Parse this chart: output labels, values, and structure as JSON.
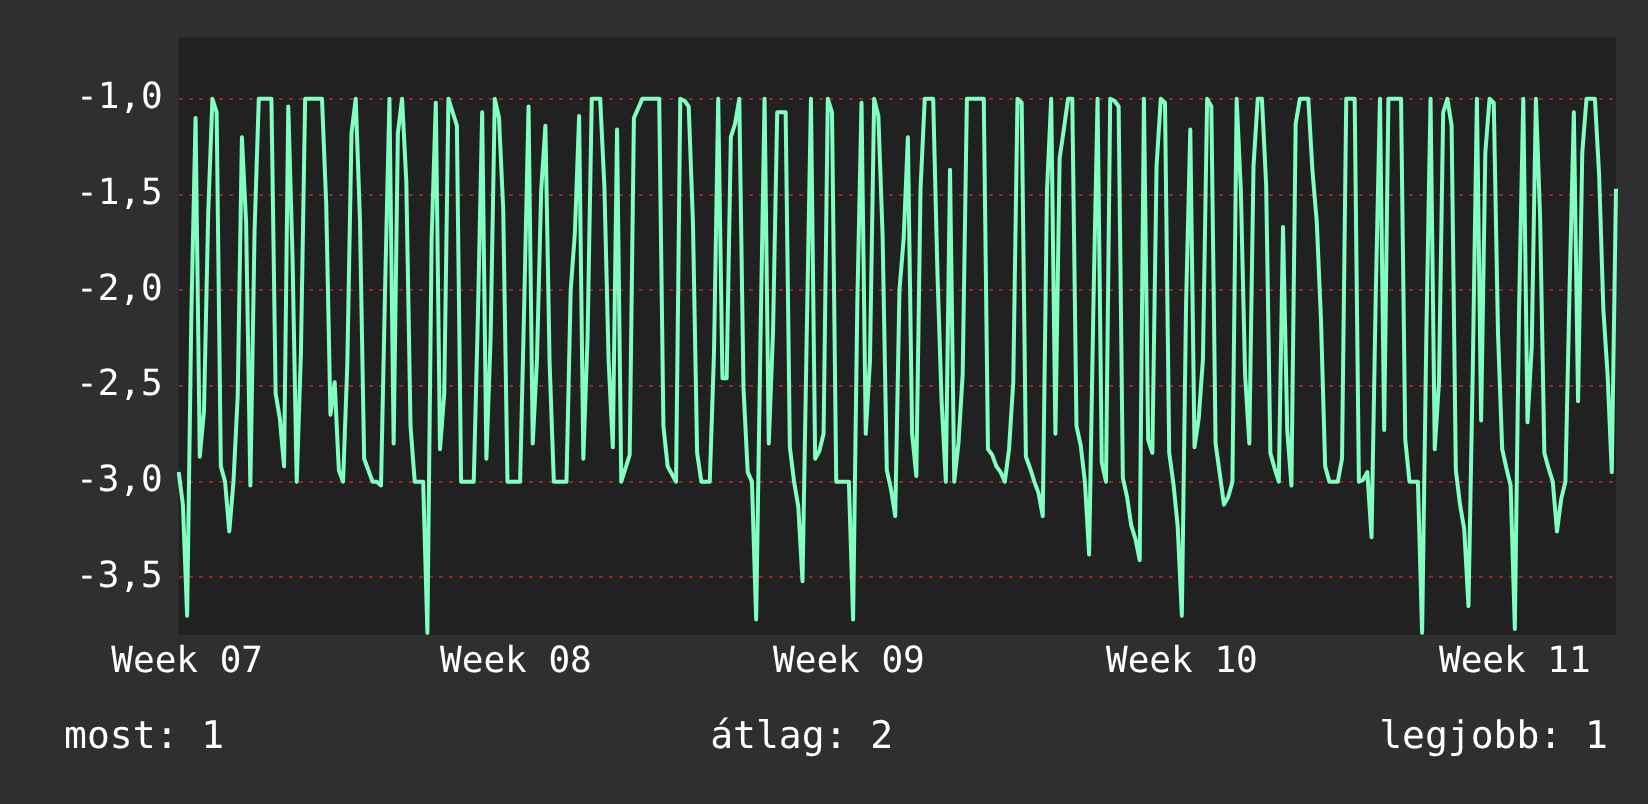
{
  "chart_data": {
    "type": "line",
    "categories": [
      null,
      null,
      "Week 07",
      null,
      null,
      null,
      null,
      null,
      null,
      null,
      null,
      null,
      null,
      null,
      null,
      null,
      null,
      null,
      null,
      null,
      null,
      null,
      null,
      null,
      null,
      null,
      null,
      null,
      null,
      null,
      null,
      null,
      null,
      null,
      null,
      null,
      null,
      null,
      null,
      null,
      null,
      null,
      null,
      null,
      null,
      null,
      null,
      null,
      null,
      null,
      null,
      null,
      null,
      null,
      null,
      null,
      null,
      null,
      null,
      null,
      null,
      null,
      null,
      null,
      null,
      null,
      null,
      null,
      null,
      null,
      null,
      null,
      null,
      null,
      null,
      null,
      null,
      null,
      null,
      null,
      "Week 08",
      null,
      null,
      null,
      null,
      null,
      null,
      null,
      null,
      null,
      null,
      null,
      null,
      null,
      null,
      null,
      null,
      null,
      null,
      null,
      null,
      null,
      null,
      null,
      null,
      null,
      null,
      null,
      null,
      null,
      null,
      null,
      null,
      null,
      null,
      null,
      null,
      null,
      null,
      null,
      null,
      null,
      null,
      null,
      null,
      null,
      null,
      null,
      null,
      null,
      null,
      null,
      null,
      null,
      null,
      null,
      null,
      null,
      null,
      null,
      null,
      null,
      null,
      null,
      null,
      null,
      null,
      null,
      null,
      null,
      null,
      null,
      null,
      null,
      null,
      null,
      null,
      null,
      null,
      "Week 09",
      null,
      null,
      null,
      null,
      null,
      null,
      null,
      null,
      null,
      null,
      null,
      null,
      null,
      null,
      null,
      null,
      null,
      null,
      null,
      null,
      null,
      null,
      null,
      null,
      null,
      null,
      null,
      null,
      null,
      null,
      null,
      null,
      null,
      null,
      null,
      null,
      null,
      null,
      null,
      null,
      null,
      null,
      null,
      null,
      null,
      null,
      null,
      null,
      null,
      null,
      null,
      null,
      null,
      null,
      null,
      null,
      null,
      null,
      null,
      null,
      null,
      null,
      null,
      null,
      null,
      null,
      null,
      null,
      null,
      null,
      null,
      null,
      null,
      null,
      null,
      null,
      null,
      null,
      "Week 10",
      null,
      null,
      null,
      null,
      null,
      null,
      null,
      null,
      null,
      null,
      null,
      null,
      null,
      null,
      null,
      null,
      null,
      null,
      null,
      null,
      null,
      null,
      null,
      null,
      null,
      null,
      null,
      null,
      null,
      null,
      null,
      null,
      null,
      null,
      null,
      null,
      null,
      null,
      null,
      null,
      null,
      null,
      null,
      null,
      null,
      null,
      null,
      null,
      null,
      null,
      null,
      null,
      null,
      null,
      null,
      null,
      null,
      null,
      null,
      null,
      null,
      null,
      null,
      null,
      null,
      null,
      null,
      null,
      null,
      null,
      null,
      null,
      null,
      null,
      null,
      null,
      null,
      null,
      "Week 11",
      null,
      null,
      null,
      null,
      null,
      null,
      null,
      null,
      null,
      null,
      null,
      null,
      null,
      null,
      null,
      null,
      null,
      null,
      null,
      null,
      null,
      null,
      null,
      null
    ],
    "ylim": [
      -3.8,
      -0.68
    ],
    "yticks": [
      {
        "value": -3.5,
        "label": "-3,5"
      },
      {
        "value": -3,
        "label": "-3,0"
      },
      {
        "value": -2.5,
        "label": "-2,5"
      },
      {
        "value": -2,
        "label": "-2,0"
      },
      {
        "value": -1.5,
        "label": "-1,5"
      },
      {
        "value": -1,
        "label": "-1,0"
      }
    ],
    "grid": "y",
    "legend": false,
    "annotations": [
      "most: 1",
      "átlag: 2",
      "legjobb: 1"
    ],
    "series": [
      {
        "color": "#80ffc0",
        "values": [
          -2.95,
          -3.12,
          -3.7,
          -2.13,
          -1.1,
          -2.87,
          -2.63,
          -1.6,
          -1.0,
          -1.07,
          -2.92,
          -3.0,
          -3.26,
          -3.0,
          -2.55,
          -1.2,
          -1.65,
          -3.02,
          -1.69,
          -1.0,
          -1.0,
          -1.0,
          -1.0,
          -2.54,
          -2.67,
          -2.92,
          -1.04,
          -1.82,
          -3.0,
          -2.33,
          -1.0,
          -1.0,
          -1.0,
          -1.0,
          -1.0,
          -1.55,
          -2.65,
          -2.48,
          -2.94,
          -3.0,
          -2.39,
          -1.18,
          -1.0,
          -1.63,
          -2.88,
          -2.94,
          -3.0,
          -3.0,
          -3.02,
          -1.96,
          -1.0,
          -2.8,
          -1.18,
          -1.0,
          -1.43,
          -2.71,
          -3.0,
          -3.0,
          -3.0,
          -3.79,
          -1.74,
          -1.02,
          -2.83,
          -2.54,
          -1.0,
          -1.07,
          -1.14,
          -3.0,
          -3.0,
          -3.0,
          -3.0,
          -2.12,
          -1.07,
          -2.88,
          -2.25,
          -1.0,
          -1.1,
          -1.58,
          -3.0,
          -3.0,
          -3.0,
          -3.0,
          -2.05,
          -1.04,
          -2.8,
          -2.36,
          -1.48,
          -1.14,
          -2.38,
          -3.0,
          -3.0,
          -3.0,
          -3.0,
          -2.0,
          -1.7,
          -1.09,
          -2.88,
          -2.25,
          -1.0,
          -1.0,
          -1.0,
          -1.46,
          -2.37,
          -2.82,
          -1.16,
          -3.0,
          -2.93,
          -2.86,
          -1.1,
          -1.05,
          -1.0,
          -1.0,
          -1.0,
          -1.0,
          -1.0,
          -2.71,
          -2.92,
          -2.96,
          -3.0,
          -1.0,
          -1.01,
          -1.04,
          -1.64,
          -2.85,
          -3.0,
          -3.0,
          -3.0,
          -2.33,
          -1.0,
          -2.46,
          -2.46,
          -1.2,
          -1.13,
          -1.0,
          -2.51,
          -2.95,
          -3.0,
          -3.72,
          -2.3,
          -1.0,
          -2.8,
          -2.22,
          -1.07,
          -1.07,
          -1.07,
          -2.82,
          -3.0,
          -3.13,
          -3.52,
          -2.24,
          -1.0,
          -2.88,
          -2.84,
          -2.75,
          -1.0,
          -1.07,
          -3.0,
          -3.0,
          -3.0,
          -3.0,
          -3.72,
          -2.07,
          -1.02,
          -2.75,
          -2.37,
          -1.0,
          -1.09,
          -1.71,
          -2.94,
          -3.04,
          -3.18,
          -2.0,
          -1.73,
          -1.2,
          -2.75,
          -2.97,
          -1.47,
          -1.0,
          -1.0,
          -1.0,
          -1.9,
          -2.58,
          -3.0,
          -1.37,
          -3.0,
          -2.8,
          -2.44,
          -1.0,
          -1.0,
          -1.0,
          -1.0,
          -1.0,
          -2.83,
          -2.86,
          -2.92,
          -2.95,
          -3.0,
          -2.83,
          -2.48,
          -1.0,
          -1.02,
          -2.87,
          -2.93,
          -3.0,
          -3.06,
          -3.18,
          -1.48,
          -1.0,
          -2.75,
          -1.31,
          -1.16,
          -1.0,
          -1.0,
          -2.71,
          -2.81,
          -3.0,
          -3.38,
          -2.1,
          -1.0,
          -2.9,
          -3.0,
          -1.0,
          -1.01,
          -1.04,
          -2.98,
          -3.08,
          -3.23,
          -3.3,
          -3.41,
          -1.0,
          -2.78,
          -2.85,
          -1.35,
          -1.0,
          -1.02,
          -2.85,
          -3.01,
          -3.23,
          -3.7,
          -2.07,
          -1.16,
          -2.82,
          -2.67,
          -2.36,
          -1.0,
          -1.04,
          -2.8,
          -2.96,
          -3.12,
          -3.08,
          -3.0,
          -1.0,
          -1.48,
          -2.44,
          -2.8,
          -1.35,
          -1.0,
          -1.0,
          -1.45,
          -2.85,
          -2.93,
          -3.0,
          -1.67,
          -2.73,
          -3.02,
          -1.13,
          -1.0,
          -1.0,
          -1.0,
          -1.38,
          -1.64,
          -2.15,
          -2.92,
          -3.0,
          -3.0,
          -3.0,
          -2.88,
          -1.0,
          -1.0,
          -1.0,
          -3.0,
          -2.99,
          -2.95,
          -3.29,
          -2.03,
          -1.0,
          -2.73,
          -1.0,
          -1.0,
          -1.0,
          -1.0,
          -2.78,
          -3.0,
          -3.0,
          -3.0,
          -3.79,
          -2.24,
          -1.0,
          -2.83,
          -2.48,
          -1.07,
          -1.0,
          -1.14,
          -2.94,
          -3.12,
          -3.25,
          -3.65,
          -2.44,
          -1.0,
          -2.68,
          -1.28,
          -1.0,
          -1.02,
          -2.22,
          -2.83,
          -2.93,
          -3.02,
          -3.77,
          -2.1,
          -1.0,
          -2.69,
          -2.3,
          -1.0,
          -1.62,
          -2.85,
          -2.93,
          -3.0,
          -3.26,
          -3.09,
          -3.0,
          -1.98,
          -1.07,
          -2.58,
          -1.28,
          -1.0,
          -1.0,
          -1.0,
          -1.4,
          -2.1,
          -2.44,
          -2.95,
          -1.47
        ]
      }
    ]
  }
}
